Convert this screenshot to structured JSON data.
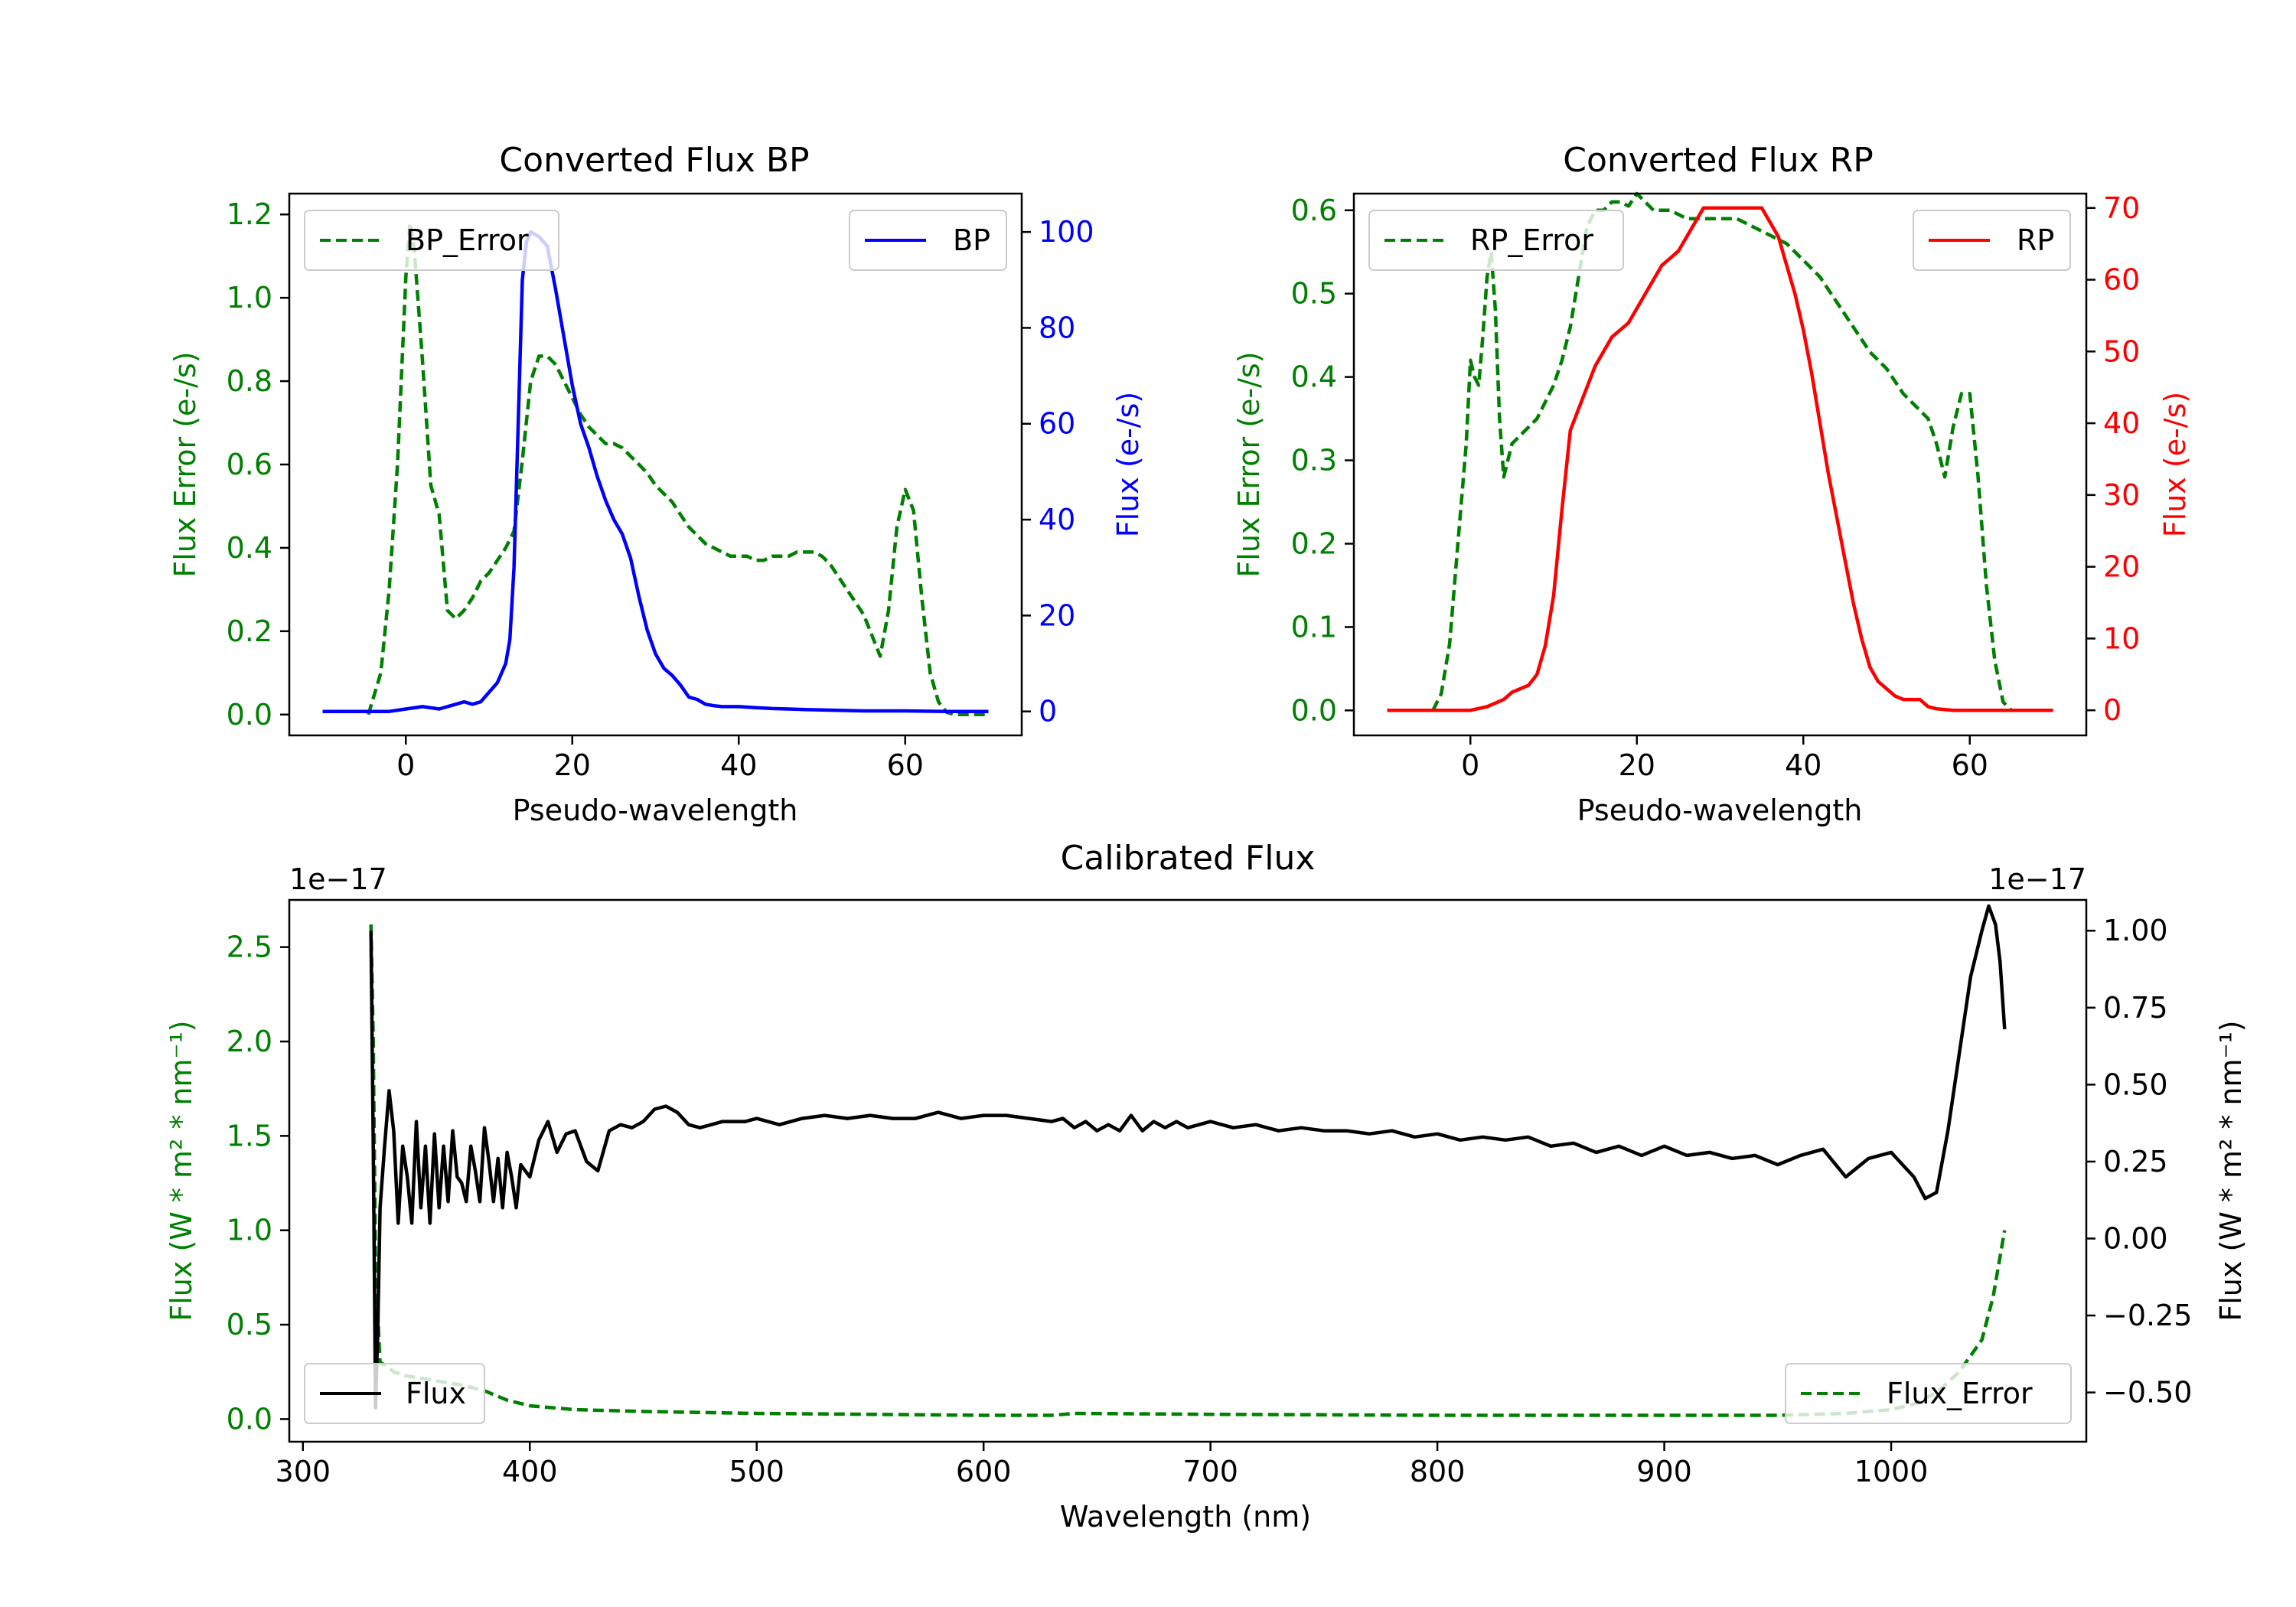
{
  "chart_data": [
    {
      "id": "bp",
      "type": "line",
      "title": "Converted Flux BP",
      "xlabel": "Pseudo-wavelength",
      "ylabel_left": "Flux Error (e-/s)",
      "ylabel_right": "Flux (e-/s)",
      "xlim": [
        -14,
        74
      ],
      "ylim_left": [
        -0.05,
        1.25
      ],
      "ylim_right": [
        -5,
        108
      ],
      "x_ticks": [
        "0",
        "20",
        "40",
        "60"
      ],
      "x_tick_values": [
        0,
        20,
        40,
        60
      ],
      "y_ticks_left": [
        "0.0",
        "0.2",
        "0.4",
        "0.6",
        "0.8",
        "1.0",
        "1.2"
      ],
      "y_tick_values_left": [
        0,
        0.2,
        0.4,
        0.6,
        0.8,
        1.0,
        1.2
      ],
      "y_ticks_right": [
        "0",
        "20",
        "40",
        "60",
        "80",
        "100"
      ],
      "y_tick_values_right": [
        0,
        20,
        40,
        60,
        80,
        100
      ],
      "colors": {
        "left": "#008000",
        "right": "#0000ff"
      },
      "series": [
        {
          "name": "BP_Error",
          "axis": "left",
          "style": "dashed",
          "color": "#008000",
          "x": [
            -4.5,
            -3,
            -2,
            -1,
            0,
            0.5,
            1,
            2,
            3,
            4,
            5,
            6,
            7,
            8,
            9,
            10,
            11,
            12,
            13,
            14,
            15,
            16,
            17,
            18,
            19,
            20,
            21,
            22,
            23,
            24,
            25,
            26,
            27,
            28,
            29,
            30,
            31,
            32,
            33,
            34,
            35,
            36,
            37,
            38,
            39,
            40,
            41,
            42,
            43,
            44,
            45,
            46,
            47,
            48,
            49,
            50,
            51,
            52,
            53,
            54,
            55,
            56,
            57,
            58,
            59,
            60,
            61,
            62,
            63,
            64,
            65,
            66,
            68,
            70
          ],
          "y": [
            0.0,
            0.1,
            0.3,
            0.6,
            1.05,
            1.18,
            1.12,
            0.85,
            0.55,
            0.48,
            0.25,
            0.23,
            0.25,
            0.28,
            0.32,
            0.34,
            0.37,
            0.4,
            0.44,
            0.61,
            0.8,
            0.86,
            0.86,
            0.84,
            0.8,
            0.76,
            0.72,
            0.69,
            0.67,
            0.65,
            0.65,
            0.64,
            0.62,
            0.6,
            0.58,
            0.55,
            0.53,
            0.51,
            0.48,
            0.45,
            0.43,
            0.41,
            0.4,
            0.39,
            0.38,
            0.38,
            0.38,
            0.37,
            0.37,
            0.38,
            0.38,
            0.38,
            0.39,
            0.39,
            0.39,
            0.38,
            0.36,
            0.33,
            0.3,
            0.27,
            0.24,
            0.19,
            0.14,
            0.25,
            0.45,
            0.54,
            0.49,
            0.28,
            0.1,
            0.03,
            0.005,
            0.0,
            0.0,
            0.0
          ]
        },
        {
          "name": "BP",
          "axis": "right",
          "style": "solid",
          "color": "#0000ff",
          "x": [
            -10,
            -5,
            -2,
            0,
            2,
            4,
            6,
            7,
            8,
            9,
            10,
            11,
            12,
            12.5,
            13,
            13.5,
            14,
            14.5,
            15,
            16,
            17,
            18,
            19,
            20,
            21,
            22,
            23,
            24,
            25,
            26,
            27,
            28,
            29,
            30,
            31,
            32,
            33,
            34,
            35,
            36,
            37,
            38,
            40,
            42,
            44,
            46,
            48,
            50,
            55,
            60,
            65,
            70
          ],
          "y": [
            0,
            0,
            0,
            0.5,
            1,
            0.5,
            1.5,
            2,
            1.5,
            2,
            4,
            6,
            10,
            15,
            30,
            60,
            90,
            98,
            100,
            99,
            97,
            88,
            78,
            68,
            60,
            55,
            49,
            44,
            40,
            37,
            32,
            24,
            17,
            12,
            9,
            7.5,
            5.5,
            3,
            2.5,
            1.5,
            1.2,
            1,
            1,
            0.8,
            0.6,
            0.5,
            0.4,
            0.3,
            0.1,
            0.1,
            0,
            0
          ]
        }
      ],
      "legend": [
        {
          "label": "BP_Error",
          "position": "upper-left"
        },
        {
          "label": "BP",
          "position": "upper-right"
        }
      ]
    },
    {
      "id": "rp",
      "type": "line",
      "title": "Converted Flux RP",
      "xlabel": "Pseudo-wavelength",
      "ylabel_left": "Flux Error (e-/s)",
      "ylabel_right": "Flux (e-/s)",
      "xlim": [
        -14,
        74
      ],
      "ylim_left": [
        -0.03,
        0.62
      ],
      "ylim_right": [
        -3.5,
        72
      ],
      "x_ticks": [
        "0",
        "20",
        "40",
        "60"
      ],
      "x_tick_values": [
        0,
        20,
        40,
        60
      ],
      "y_ticks_left": [
        "0.0",
        "0.1",
        "0.2",
        "0.3",
        "0.4",
        "0.5",
        "0.6"
      ],
      "y_tick_values_left": [
        0,
        0.1,
        0.2,
        0.3,
        0.4,
        0.5,
        0.6
      ],
      "y_ticks_right": [
        "0",
        "10",
        "20",
        "30",
        "40",
        "50",
        "60",
        "70"
      ],
      "y_tick_values_right": [
        0,
        10,
        20,
        30,
        40,
        50,
        60,
        70
      ],
      "colors": {
        "left": "#008000",
        "right": "#ff0000"
      },
      "series": [
        {
          "name": "RP_Error",
          "axis": "left",
          "style": "dashed",
          "color": "#008000",
          "x": [
            -4.5,
            -3.5,
            -2.5,
            -1.5,
            -0.5,
            0,
            0.5,
            1,
            1.5,
            2,
            2.5,
            3,
            3.5,
            4,
            5,
            6,
            7,
            8,
            9,
            10,
            11,
            12,
            13,
            14,
            15,
            16,
            17,
            18,
            19,
            20,
            21,
            22,
            24,
            26,
            28,
            30,
            32,
            34,
            36,
            38,
            40,
            42,
            44,
            46,
            48,
            50,
            52,
            53,
            54,
            55,
            56,
            57,
            58,
            59,
            60,
            61,
            62,
            63,
            64,
            65
          ],
          "y": [
            0.0,
            0.02,
            0.08,
            0.2,
            0.32,
            0.42,
            0.4,
            0.39,
            0.45,
            0.52,
            0.55,
            0.48,
            0.35,
            0.28,
            0.32,
            0.33,
            0.34,
            0.35,
            0.37,
            0.39,
            0.42,
            0.46,
            0.52,
            0.58,
            0.6,
            0.6,
            0.61,
            0.61,
            0.605,
            0.62,
            0.61,
            0.6,
            0.6,
            0.59,
            0.59,
            0.59,
            0.59,
            0.58,
            0.57,
            0.56,
            0.54,
            0.52,
            0.49,
            0.46,
            0.43,
            0.41,
            0.38,
            0.37,
            0.36,
            0.35,
            0.32,
            0.28,
            0.34,
            0.38,
            0.38,
            0.28,
            0.15,
            0.06,
            0.01,
            0.0
          ]
        },
        {
          "name": "RP",
          "axis": "right",
          "style": "solid",
          "color": "#ff0000",
          "x": [
            -10,
            -5,
            0,
            2,
            4,
            5,
            6,
            7,
            8,
            9,
            10,
            11,
            12,
            13,
            14,
            15,
            16,
            17,
            18,
            19,
            20,
            21,
            22,
            23,
            24,
            25,
            26,
            27,
            28,
            29,
            30,
            31,
            32,
            33,
            34,
            35,
            36,
            37,
            38,
            39,
            40,
            41,
            42,
            43,
            44,
            45,
            46,
            47,
            48,
            49,
            50,
            51,
            52,
            53,
            54,
            55,
            56,
            58,
            60,
            65,
            70
          ],
          "y": [
            0,
            0,
            0,
            0.5,
            1.5,
            2.5,
            3,
            3.5,
            5,
            9,
            16,
            28,
            39,
            42,
            45,
            48,
            50,
            52,
            53,
            54,
            56,
            58,
            60,
            62,
            63,
            64,
            66,
            68,
            70,
            70,
            70,
            70,
            70,
            70,
            70,
            70,
            68,
            66,
            62,
            58,
            53,
            47,
            40,
            33,
            27,
            21,
            15,
            10,
            6,
            4,
            3,
            2,
            1.5,
            1.5,
            1.5,
            0.5,
            0.2,
            0,
            0,
            0,
            0
          ]
        }
      ],
      "legend": [
        {
          "label": "RP_Error",
          "position": "upper-left"
        },
        {
          "label": "RP",
          "position": "upper-right"
        }
      ]
    },
    {
      "id": "cal",
      "type": "line",
      "title": "Calibrated Flux",
      "xlabel": "Wavelength (nm)",
      "ylabel_left": "Flux (W * m² * nm⁻¹)",
      "ylabel_right": "Flux (W * m² * nm⁻¹)",
      "offset_left": "1e−17",
      "offset_right": "1e−17",
      "xlim": [
        294,
        1086
      ],
      "ylim_left": [
        -0.12,
        2.75
      ],
      "ylim_right": [
        -0.66,
        1.1
      ],
      "x_ticks": [
        "300",
        "400",
        "500",
        "600",
        "700",
        "800",
        "900",
        "1000"
      ],
      "x_tick_values": [
        300,
        400,
        500,
        600,
        700,
        800,
        900,
        1000
      ],
      "y_ticks_left": [
        "0.0",
        "0.5",
        "1.0",
        "1.5",
        "2.0",
        "2.5"
      ],
      "y_tick_values_left": [
        0,
        0.5,
        1.0,
        1.5,
        2.0,
        2.5
      ],
      "y_ticks_right": [
        "−0.50",
        "−0.25",
        "0.00",
        "0.25",
        "0.50",
        "0.75",
        "1.00"
      ],
      "y_tick_values_right": [
        -0.5,
        -0.25,
        0,
        0.25,
        0.5,
        0.75,
        1.0
      ],
      "colors": {
        "left": "#008000",
        "right": "#000000"
      },
      "series": [
        {
          "name": "Flux_Error",
          "axis": "left",
          "style": "dashed",
          "color": "#008000",
          "x": [
            330,
            331,
            332,
            334,
            337,
            340,
            345,
            350,
            360,
            370,
            380,
            390,
            400,
            420,
            450,
            500,
            550,
            600,
            630,
            640,
            700,
            800,
            900,
            950,
            980,
            1000,
            1010,
            1020,
            1030,
            1040,
            1045,
            1050
          ],
          "y": [
            2.62,
            2.0,
            0.8,
            0.3,
            0.28,
            0.25,
            0.23,
            0.22,
            0.2,
            0.18,
            0.15,
            0.1,
            0.07,
            0.05,
            0.04,
            0.03,
            0.025,
            0.02,
            0.02,
            0.03,
            0.025,
            0.02,
            0.02,
            0.02,
            0.03,
            0.05,
            0.08,
            0.14,
            0.25,
            0.42,
            0.65,
            1.0
          ]
        },
        {
          "name": "Flux",
          "axis": "right",
          "style": "solid",
          "color": "#000000",
          "x": [
            330,
            331,
            332,
            333,
            334,
            336,
            338,
            340,
            342,
            344,
            346,
            348,
            350,
            352,
            354,
            356,
            358,
            360,
            362,
            364,
            366,
            368,
            370,
            372,
            374,
            376,
            378,
            380,
            382,
            384,
            386,
            388,
            390,
            392,
            394,
            396,
            398,
            400,
            404,
            408,
            412,
            416,
            420,
            425,
            430,
            435,
            440,
            445,
            450,
            455,
            460,
            465,
            470,
            475,
            480,
            485,
            490,
            495,
            500,
            510,
            520,
            530,
            540,
            550,
            560,
            570,
            580,
            590,
            600,
            610,
            620,
            630,
            635,
            640,
            645,
            650,
            655,
            660,
            665,
            670,
            675,
            680,
            685,
            690,
            700,
            710,
            720,
            730,
            740,
            750,
            760,
            770,
            780,
            790,
            800,
            810,
            820,
            830,
            840,
            850,
            860,
            870,
            880,
            890,
            900,
            910,
            920,
            930,
            940,
            950,
            960,
            970,
            980,
            990,
            1000,
            1010,
            1015,
            1020,
            1025,
            1030,
            1035,
            1040,
            1043,
            1046,
            1048,
            1050
          ],
          "y": [
            1.0,
            0.3,
            -0.55,
            -0.3,
            0.1,
            0.3,
            0.48,
            0.35,
            0.05,
            0.3,
            0.2,
            0.05,
            0.38,
            0.1,
            0.3,
            0.05,
            0.34,
            0.1,
            0.3,
            0.12,
            0.35,
            0.2,
            0.18,
            0.12,
            0.3,
            0.22,
            0.12,
            0.36,
            0.25,
            0.12,
            0.26,
            0.1,
            0.28,
            0.2,
            0.1,
            0.24,
            0.22,
            0.2,
            0.32,
            0.38,
            0.28,
            0.34,
            0.35,
            0.25,
            0.22,
            0.35,
            0.37,
            0.36,
            0.38,
            0.42,
            0.43,
            0.41,
            0.37,
            0.36,
            0.37,
            0.38,
            0.38,
            0.38,
            0.39,
            0.37,
            0.39,
            0.4,
            0.39,
            0.4,
            0.39,
            0.39,
            0.41,
            0.39,
            0.4,
            0.4,
            0.39,
            0.38,
            0.39,
            0.36,
            0.38,
            0.35,
            0.37,
            0.35,
            0.4,
            0.35,
            0.38,
            0.36,
            0.38,
            0.36,
            0.38,
            0.36,
            0.37,
            0.35,
            0.36,
            0.35,
            0.35,
            0.34,
            0.35,
            0.33,
            0.34,
            0.32,
            0.33,
            0.32,
            0.33,
            0.3,
            0.31,
            0.28,
            0.3,
            0.27,
            0.3,
            0.27,
            0.28,
            0.26,
            0.27,
            0.24,
            0.27,
            0.29,
            0.2,
            0.26,
            0.28,
            0.2,
            0.13,
            0.15,
            0.35,
            0.6,
            0.85,
            1.0,
            1.08,
            1.02,
            0.9,
            0.68
          ]
        }
      ],
      "legend": [
        {
          "label": "Flux",
          "position": "lower-left"
        },
        {
          "label": "Flux_Error",
          "position": "lower-right"
        }
      ]
    }
  ]
}
